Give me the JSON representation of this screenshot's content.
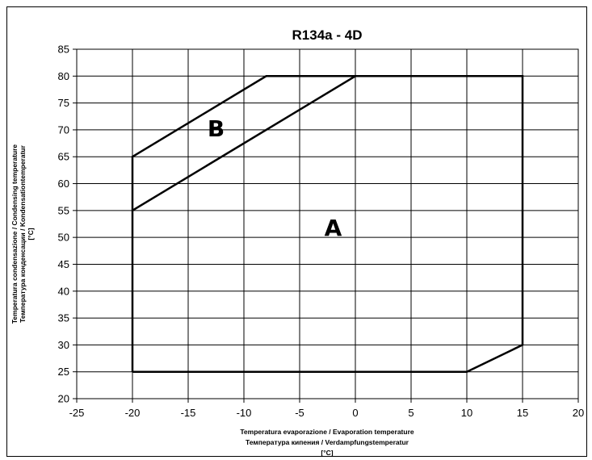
{
  "chart_data": {
    "type": "line",
    "title": "R134a - 4D",
    "xlabel_lines": [
      "Temperatura evaporazione / Evaporation temperature",
      "Температура кипения / Verdampfungstemperatur",
      "[°C]"
    ],
    "ylabel_lines": [
      "Temperatura condensazione / Condensing temperature",
      "Температура конденсации / Kondensationtemperatur",
      "[°C]"
    ],
    "xlim": [
      -25,
      20
    ],
    "ylim": [
      20,
      85
    ],
    "xticks": [
      -25,
      -20,
      -15,
      -10,
      -5,
      0,
      5,
      10,
      15,
      20
    ],
    "yticks": [
      20,
      25,
      30,
      35,
      40,
      45,
      50,
      55,
      60,
      65,
      70,
      75,
      80,
      85
    ],
    "grid": true,
    "series": [
      {
        "x": [
          -20,
          -20,
          -8,
          15,
          15,
          10,
          -20
        ],
        "y": [
          25,
          65,
          80,
          80,
          30,
          25,
          25
        ]
      },
      {
        "x": [
          -20,
          0
        ],
        "y": [
          55,
          80
        ]
      }
    ],
    "annotations": [
      {
        "text": "A",
        "x": -2,
        "y": 51.5
      },
      {
        "text": "B",
        "x": -12.5,
        "y": 70
      }
    ]
  }
}
